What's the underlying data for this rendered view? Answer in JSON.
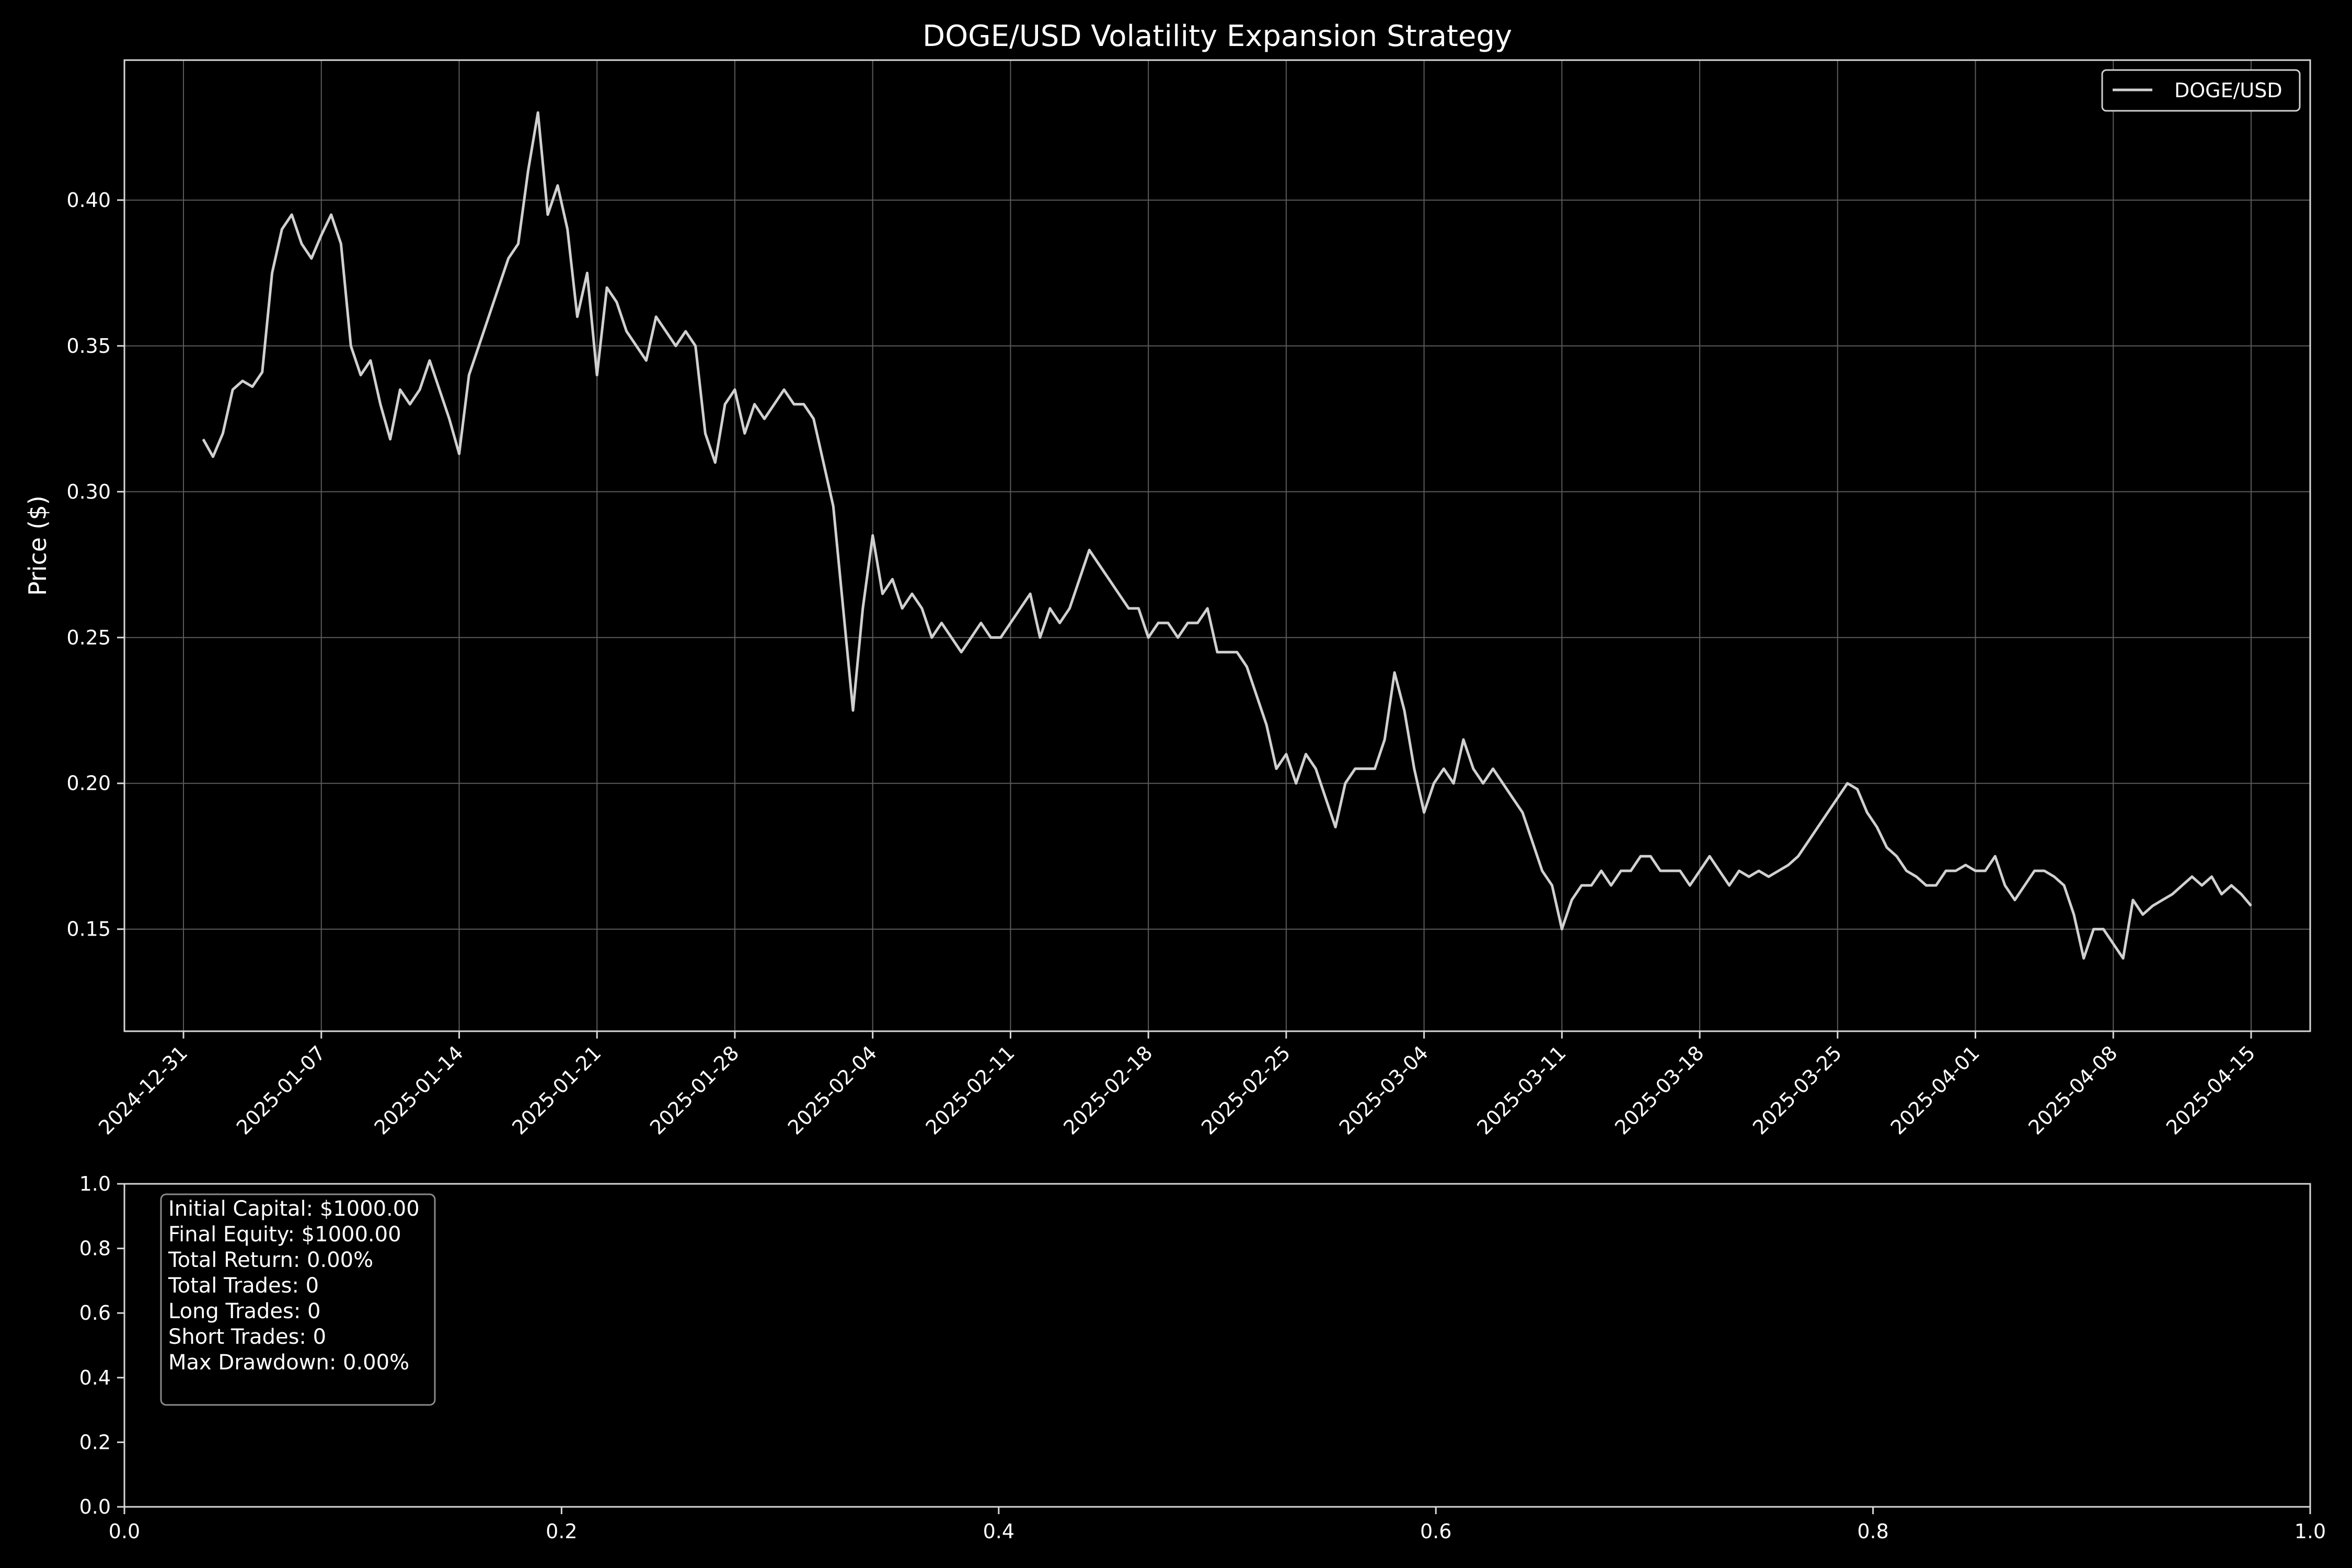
{
  "chart_data": [
    {
      "type": "line",
      "title": "DOGE/USD Volatility Expansion Strategy",
      "xlabel": "",
      "ylabel": "Price ($)",
      "xlim": [
        "2024-12-28",
        "2025-04-18"
      ],
      "ylim": [
        0.115,
        0.448
      ],
      "grid": true,
      "legend_position": "top-right",
      "colors": {
        "background": "#000000",
        "line": "#d0d0d0",
        "grid": "#5a5a5a",
        "text": "#ffffff"
      },
      "x_ticks": [
        "2024-12-31",
        "2025-01-07",
        "2025-01-14",
        "2025-01-21",
        "2025-01-28",
        "2025-02-04",
        "2025-02-11",
        "2025-02-18",
        "2025-02-25",
        "2025-03-04",
        "2025-03-11",
        "2025-03-18",
        "2025-03-25",
        "2025-04-01",
        "2025-04-08",
        "2025-04-15"
      ],
      "y_ticks": [
        "0.15",
        "0.20",
        "0.25",
        "0.30",
        "0.35",
        "0.40"
      ],
      "series": [
        {
          "name": "DOGE/USD",
          "points": [
            [
              "2025-01-01",
              0.318
            ],
            [
              "2025-01-01T12",
              0.312
            ],
            [
              "2025-01-02",
              0.32
            ],
            [
              "2025-01-02T12",
              0.335
            ],
            [
              "2025-01-03",
              0.338
            ],
            [
              "2025-01-03T12",
              0.336
            ],
            [
              "2025-01-04",
              0.341
            ],
            [
              "2025-01-04T12",
              0.375
            ],
            [
              "2025-01-05",
              0.39
            ],
            [
              "2025-01-05T12",
              0.395
            ],
            [
              "2025-01-06",
              0.385
            ],
            [
              "2025-01-06T12",
              0.38
            ],
            [
              "2025-01-07",
              0.388
            ],
            [
              "2025-01-07T12",
              0.395
            ],
            [
              "2025-01-08",
              0.385
            ],
            [
              "2025-01-08T12",
              0.35
            ],
            [
              "2025-01-09",
              0.34
            ],
            [
              "2025-01-09T12",
              0.345
            ],
            [
              "2025-01-10",
              0.33
            ],
            [
              "2025-01-10T12",
              0.318
            ],
            [
              "2025-01-11",
              0.335
            ],
            [
              "2025-01-11T12",
              0.33
            ],
            [
              "2025-01-12",
              0.335
            ],
            [
              "2025-01-12T12",
              0.345
            ],
            [
              "2025-01-13",
              0.335
            ],
            [
              "2025-01-13T12",
              0.325
            ],
            [
              "2025-01-14",
              0.313
            ],
            [
              "2025-01-14T12",
              0.34
            ],
            [
              "2025-01-15",
              0.35
            ],
            [
              "2025-01-15T12",
              0.36
            ],
            [
              "2025-01-16",
              0.37
            ],
            [
              "2025-01-16T12",
              0.38
            ],
            [
              "2025-01-17",
              0.385
            ],
            [
              "2025-01-17T12",
              0.41
            ],
            [
              "2025-01-18",
              0.43
            ],
            [
              "2025-01-18T12",
              0.395
            ],
            [
              "2025-01-19",
              0.405
            ],
            [
              "2025-01-19T12",
              0.39
            ],
            [
              "2025-01-20",
              0.36
            ],
            [
              "2025-01-20T12",
              0.375
            ],
            [
              "2025-01-21",
              0.34
            ],
            [
              "2025-01-21T12",
              0.37
            ],
            [
              "2025-01-22",
              0.365
            ],
            [
              "2025-01-22T12",
              0.355
            ],
            [
              "2025-01-23",
              0.35
            ],
            [
              "2025-01-23T12",
              0.345
            ],
            [
              "2025-01-24",
              0.36
            ],
            [
              "2025-01-24T12",
              0.355
            ],
            [
              "2025-01-25",
              0.35
            ],
            [
              "2025-01-25T12",
              0.355
            ],
            [
              "2025-01-26",
              0.35
            ],
            [
              "2025-01-26T12",
              0.32
            ],
            [
              "2025-01-27",
              0.31
            ],
            [
              "2025-01-27T12",
              0.33
            ],
            [
              "2025-01-28",
              0.335
            ],
            [
              "2025-01-28T12",
              0.32
            ],
            [
              "2025-01-29",
              0.33
            ],
            [
              "2025-01-29T12",
              0.325
            ],
            [
              "2025-01-30",
              0.33
            ],
            [
              "2025-01-30T12",
              0.335
            ],
            [
              "2025-01-31",
              0.33
            ],
            [
              "2025-01-31T12",
              0.33
            ],
            [
              "2025-02-01",
              0.325
            ],
            [
              "2025-02-01T12",
              0.31
            ],
            [
              "2025-02-02",
              0.295
            ],
            [
              "2025-02-02T12",
              0.26
            ],
            [
              "2025-02-03",
              0.225
            ],
            [
              "2025-02-03T12",
              0.26
            ],
            [
              "2025-02-04",
              0.285
            ],
            [
              "2025-02-04T12",
              0.265
            ],
            [
              "2025-02-05",
              0.27
            ],
            [
              "2025-02-05T12",
              0.26
            ],
            [
              "2025-02-06",
              0.265
            ],
            [
              "2025-02-06T12",
              0.26
            ],
            [
              "2025-02-07",
              0.25
            ],
            [
              "2025-02-07T12",
              0.255
            ],
            [
              "2025-02-08",
              0.25
            ],
            [
              "2025-02-08T12",
              0.245
            ],
            [
              "2025-02-09",
              0.25
            ],
            [
              "2025-02-09T12",
              0.255
            ],
            [
              "2025-02-10",
              0.25
            ],
            [
              "2025-02-10T12",
              0.25
            ],
            [
              "2025-02-11",
              0.255
            ],
            [
              "2025-02-11T12",
              0.26
            ],
            [
              "2025-02-12",
              0.265
            ],
            [
              "2025-02-12T12",
              0.25
            ],
            [
              "2025-02-13",
              0.26
            ],
            [
              "2025-02-13T12",
              0.255
            ],
            [
              "2025-02-14",
              0.26
            ],
            [
              "2025-02-14T12",
              0.27
            ],
            [
              "2025-02-15",
              0.28
            ],
            [
              "2025-02-15T12",
              0.275
            ],
            [
              "2025-02-16",
              0.27
            ],
            [
              "2025-02-16T12",
              0.265
            ],
            [
              "2025-02-17",
              0.26
            ],
            [
              "2025-02-17T12",
              0.26
            ],
            [
              "2025-02-18",
              0.25
            ],
            [
              "2025-02-18T12",
              0.255
            ],
            [
              "2025-02-19",
              0.255
            ],
            [
              "2025-02-19T12",
              0.25
            ],
            [
              "2025-02-20",
              0.255
            ],
            [
              "2025-02-20T12",
              0.255
            ],
            [
              "2025-02-21",
              0.26
            ],
            [
              "2025-02-21T12",
              0.245
            ],
            [
              "2025-02-22",
              0.245
            ],
            [
              "2025-02-22T12",
              0.245
            ],
            [
              "2025-02-23",
              0.24
            ],
            [
              "2025-02-23T12",
              0.23
            ],
            [
              "2025-02-24",
              0.22
            ],
            [
              "2025-02-24T12",
              0.205
            ],
            [
              "2025-02-25",
              0.21
            ],
            [
              "2025-02-25T12",
              0.2
            ],
            [
              "2025-02-26",
              0.21
            ],
            [
              "2025-02-26T12",
              0.205
            ],
            [
              "2025-02-27",
              0.195
            ],
            [
              "2025-02-27T12",
              0.185
            ],
            [
              "2025-02-28",
              0.2
            ],
            [
              "2025-02-28T12",
              0.205
            ],
            [
              "2025-03-01",
              0.205
            ],
            [
              "2025-03-01T12",
              0.205
            ],
            [
              "2025-03-02",
              0.215
            ],
            [
              "2025-03-02T12",
              0.238
            ],
            [
              "2025-03-03",
              0.225
            ],
            [
              "2025-03-03T12",
              0.205
            ],
            [
              "2025-03-04",
              0.19
            ],
            [
              "2025-03-04T12",
              0.2
            ],
            [
              "2025-03-05",
              0.205
            ],
            [
              "2025-03-05T12",
              0.2
            ],
            [
              "2025-03-06",
              0.215
            ],
            [
              "2025-03-06T12",
              0.205
            ],
            [
              "2025-03-07",
              0.2
            ],
            [
              "2025-03-07T12",
              0.205
            ],
            [
              "2025-03-08",
              0.2
            ],
            [
              "2025-03-08T12",
              0.195
            ],
            [
              "2025-03-09",
              0.19
            ],
            [
              "2025-03-09T12",
              0.18
            ],
            [
              "2025-03-10",
              0.17
            ],
            [
              "2025-03-10T12",
              0.165
            ],
            [
              "2025-03-11",
              0.15
            ],
            [
              "2025-03-11T12",
              0.16
            ],
            [
              "2025-03-12",
              0.165
            ],
            [
              "2025-03-12T12",
              0.165
            ],
            [
              "2025-03-13",
              0.17
            ],
            [
              "2025-03-13T12",
              0.165
            ],
            [
              "2025-03-14",
              0.17
            ],
            [
              "2025-03-14T12",
              0.17
            ],
            [
              "2025-03-15",
              0.175
            ],
            [
              "2025-03-15T12",
              0.175
            ],
            [
              "2025-03-16",
              0.17
            ],
            [
              "2025-03-16T12",
              0.17
            ],
            [
              "2025-03-17",
              0.17
            ],
            [
              "2025-03-17T12",
              0.165
            ],
            [
              "2025-03-18",
              0.17
            ],
            [
              "2025-03-18T12",
              0.175
            ],
            [
              "2025-03-19",
              0.17
            ],
            [
              "2025-03-19T12",
              0.165
            ],
            [
              "2025-03-20",
              0.17
            ],
            [
              "2025-03-20T12",
              0.168
            ],
            [
              "2025-03-21",
              0.17
            ],
            [
              "2025-03-21T12",
              0.168
            ],
            [
              "2025-03-22",
              0.17
            ],
            [
              "2025-03-22T12",
              0.172
            ],
            [
              "2025-03-23",
              0.175
            ],
            [
              "2025-03-23T12",
              0.18
            ],
            [
              "2025-03-24",
              0.185
            ],
            [
              "2025-03-24T12",
              0.19
            ],
            [
              "2025-03-25",
              0.195
            ],
            [
              "2025-03-25T12",
              0.2
            ],
            [
              "2025-03-26",
              0.198
            ],
            [
              "2025-03-26T12",
              0.19
            ],
            [
              "2025-03-27",
              0.185
            ],
            [
              "2025-03-27T12",
              0.178
            ],
            [
              "2025-03-28",
              0.175
            ],
            [
              "2025-03-28T12",
              0.17
            ],
            [
              "2025-03-29",
              0.168
            ],
            [
              "2025-03-29T12",
              0.165
            ],
            [
              "2025-03-30",
              0.165
            ],
            [
              "2025-03-30T12",
              0.17
            ],
            [
              "2025-03-31",
              0.17
            ],
            [
              "2025-03-31T12",
              0.172
            ],
            [
              "2025-04-01",
              0.17
            ],
            [
              "2025-04-01T12",
              0.17
            ],
            [
              "2025-04-02",
              0.175
            ],
            [
              "2025-04-02T12",
              0.165
            ],
            [
              "2025-04-03",
              0.16
            ],
            [
              "2025-04-03T12",
              0.165
            ],
            [
              "2025-04-04",
              0.17
            ],
            [
              "2025-04-04T12",
              0.17
            ],
            [
              "2025-04-05",
              0.168
            ],
            [
              "2025-04-05T12",
              0.165
            ],
            [
              "2025-04-06",
              0.155
            ],
            [
              "2025-04-06T12",
              0.14
            ],
            [
              "2025-04-07",
              0.15
            ],
            [
              "2025-04-07T12",
              0.15
            ],
            [
              "2025-04-08",
              0.145
            ],
            [
              "2025-04-08T12",
              0.14
            ],
            [
              "2025-04-09",
              0.16
            ],
            [
              "2025-04-09T12",
              0.155
            ],
            [
              "2025-04-10",
              0.158
            ],
            [
              "2025-04-10T12",
              0.16
            ],
            [
              "2025-04-11",
              0.162
            ],
            [
              "2025-04-11T12",
              0.165
            ],
            [
              "2025-04-12",
              0.168
            ],
            [
              "2025-04-12T12",
              0.165
            ],
            [
              "2025-04-13",
              0.168
            ],
            [
              "2025-04-13T12",
              0.162
            ],
            [
              "2025-04-14",
              0.165
            ],
            [
              "2025-04-14T12",
              0.162
            ],
            [
              "2025-04-15",
              0.158
            ]
          ]
        }
      ]
    },
    {
      "type": "table",
      "xlabel": "",
      "ylabel": "",
      "xlim": [
        0.0,
        1.0
      ],
      "ylim": [
        0.0,
        1.0
      ],
      "x_ticks": [
        "0.0",
        "0.2",
        "0.4",
        "0.6",
        "0.8",
        "1.0"
      ],
      "y_ticks": [
        "0.0",
        "0.2",
        "0.4",
        "0.6",
        "0.8",
        "1.0"
      ],
      "stats": [
        "Initial Capital: $1000.00",
        "Final Equity: $1000.00",
        "Total Return: 0.00%",
        "Total Trades: 0",
        "Long Trades: 0",
        "Short Trades: 0",
        "Max Drawdown: 0.00%"
      ]
    }
  ]
}
